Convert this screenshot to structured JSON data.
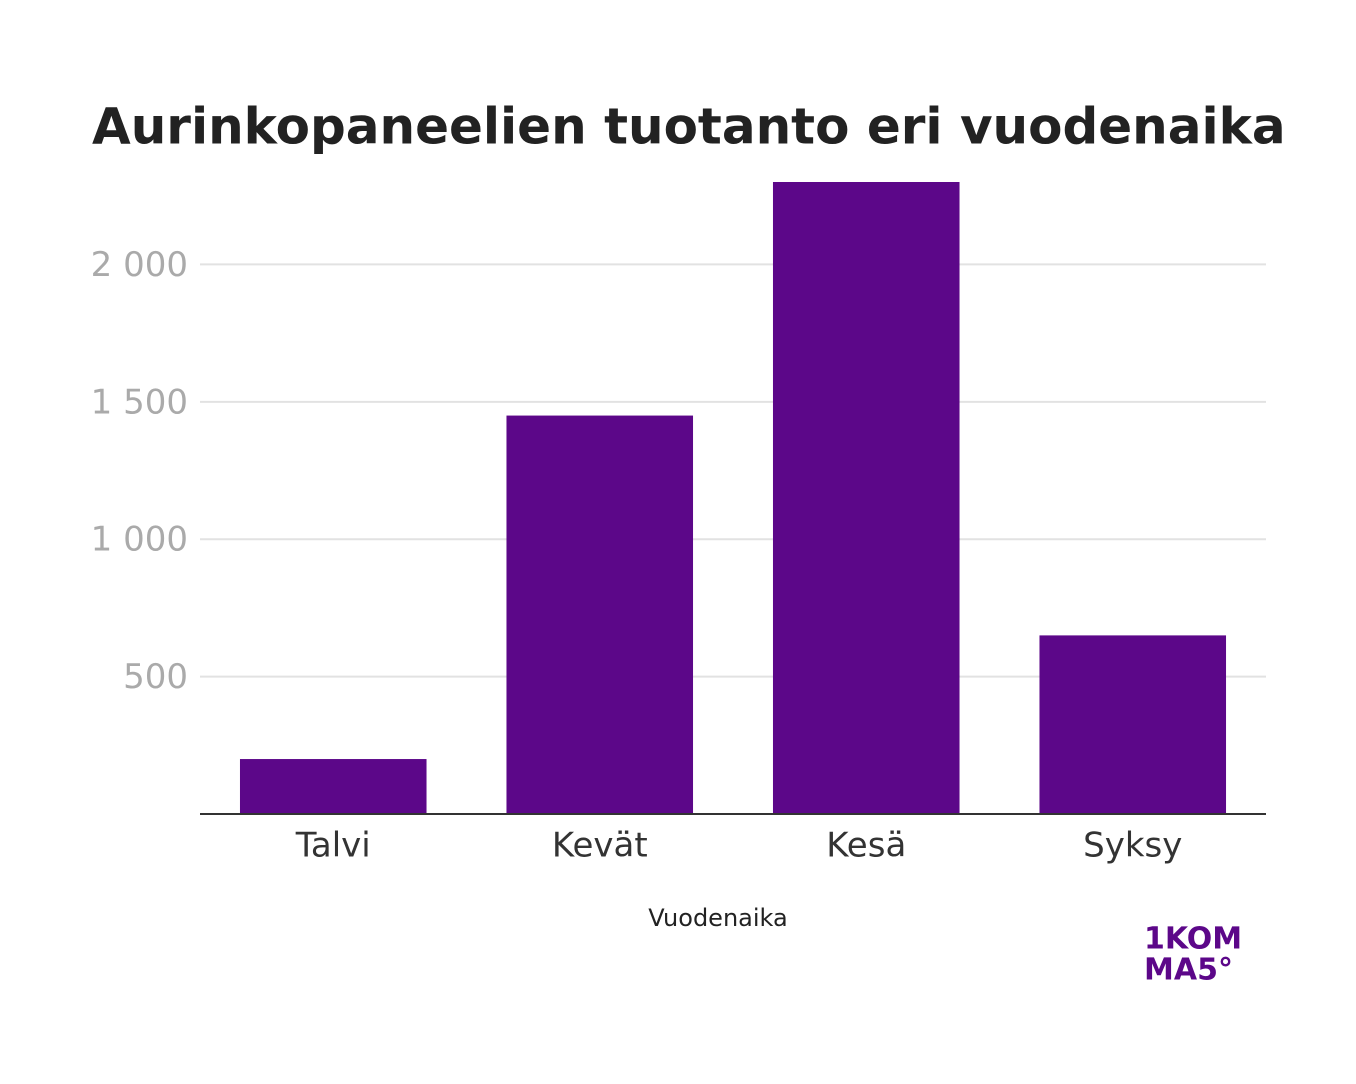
{
  "chart_data": {
    "type": "bar",
    "title": "Aurinkopaneelien tuotanto eri vuodenaika",
    "x_label": "Vuodenaika",
    "categories": [
      "Talvi",
      "Kevät",
      "Kesä",
      "Syksy"
    ],
    "values": [
      200,
      1450,
      2300,
      650
    ],
    "color": "#5c0789",
    "ylim": [
      0,
      2300
    ],
    "yticks": [
      {
        "value": 500,
        "label": "500"
      },
      {
        "value": 1000,
        "label": "1 000"
      },
      {
        "value": 1500,
        "label": "1 500"
      },
      {
        "value": 2000,
        "label": "2 000"
      }
    ],
    "grid": true
  },
  "logo": {
    "line1": "1KOM",
    "line2": "MA5°"
  }
}
